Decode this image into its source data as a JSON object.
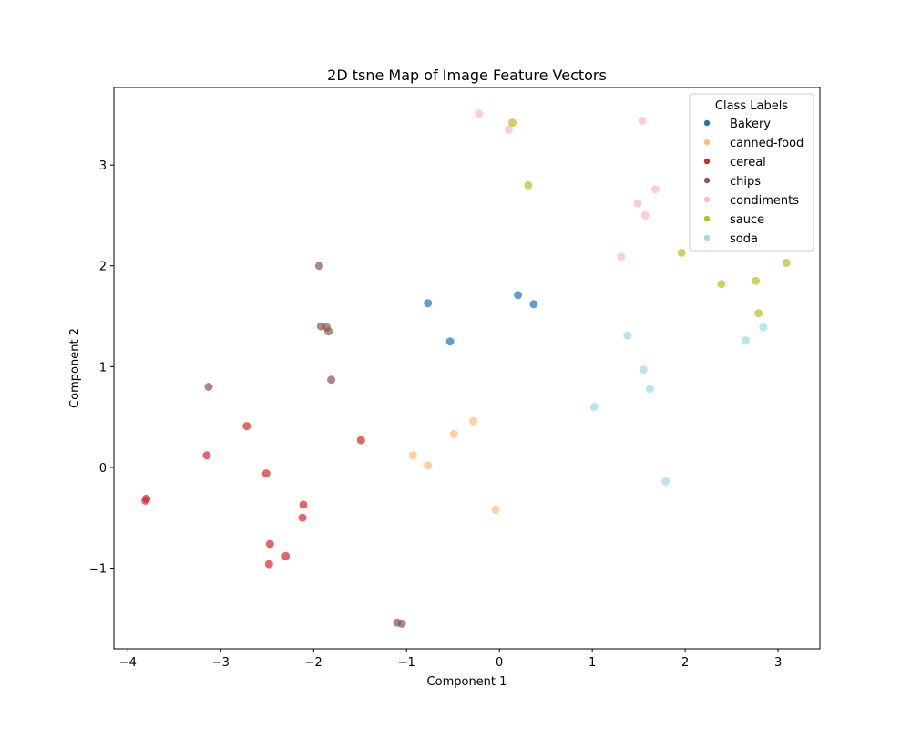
{
  "chart_data": {
    "type": "scatter",
    "title": "2D tsne Map of Image Feature Vectors",
    "xlabel": "Component 1",
    "ylabel": "Component 2",
    "xlim": [
      -4.15,
      3.45
    ],
    "ylim": [
      -1.8,
      3.77
    ],
    "xticks": [
      -4,
      -3,
      -2,
      -1,
      0,
      1,
      2,
      3
    ],
    "yticks": [
      -1,
      0,
      1,
      2,
      3
    ],
    "xtick_labels": [
      "−4",
      "−3",
      "−2",
      "−1",
      "0",
      "1",
      "2",
      "3"
    ],
    "ytick_labels": [
      "−1",
      "0",
      "1",
      "2",
      "3"
    ],
    "grid": false,
    "legend": {
      "title": "Class Labels",
      "position": "top-right"
    },
    "series": [
      {
        "name": "Bakery",
        "color": "#1f77b4",
        "points": [
          [
            -0.77,
            1.63
          ],
          [
            0.2,
            1.71
          ],
          [
            0.37,
            1.62
          ],
          [
            -0.53,
            1.25
          ]
        ]
      },
      {
        "name": "canned-food",
        "color": "#ffbb78",
        "points": [
          [
            -0.28,
            0.46
          ],
          [
            -0.49,
            0.33
          ],
          [
            -0.93,
            0.12
          ],
          [
            -0.77,
            0.02
          ],
          [
            -0.04,
            -0.42
          ]
        ]
      },
      {
        "name": "cereal",
        "color": "#d62728",
        "points": [
          [
            -2.72,
            0.41
          ],
          [
            -3.15,
            0.12
          ],
          [
            -1.49,
            0.27
          ],
          [
            -2.51,
            -0.06
          ],
          [
            -3.8,
            -0.31
          ],
          [
            -3.81,
            -0.33
          ],
          [
            -2.11,
            -0.37
          ],
          [
            -2.12,
            -0.5
          ],
          [
            -2.47,
            -0.76
          ],
          [
            -2.3,
            -0.88
          ],
          [
            -2.48,
            -0.96
          ]
        ]
      },
      {
        "name": "chips",
        "color": "#8c564b",
        "points": [
          [
            -1.94,
            2.0
          ],
          [
            -1.92,
            1.4
          ],
          [
            -1.86,
            1.39
          ],
          [
            -1.84,
            1.35
          ],
          [
            -1.81,
            0.87
          ],
          [
            -3.13,
            0.8
          ],
          [
            -1.1,
            -1.54
          ],
          [
            -1.05,
            -1.55
          ]
        ]
      },
      {
        "name": "condiments",
        "color": "#f7b6d2",
        "points": [
          [
            -0.22,
            3.51
          ],
          [
            0.1,
            3.35
          ],
          [
            1.54,
            3.44
          ],
          [
            1.68,
            2.76
          ],
          [
            1.49,
            2.62
          ],
          [
            1.57,
            2.5
          ],
          [
            1.31,
            2.09
          ]
        ]
      },
      {
        "name": "sauce",
        "color": "#bcbd22",
        "points": [
          [
            0.14,
            3.42
          ],
          [
            0.31,
            2.8
          ],
          [
            1.96,
            2.13
          ],
          [
            3.09,
            2.03
          ],
          [
            2.39,
            1.82
          ],
          [
            2.76,
            1.85
          ],
          [
            2.79,
            1.53
          ]
        ]
      },
      {
        "name": "soda",
        "color": "#9edae5",
        "points": [
          [
            1.38,
            1.31
          ],
          [
            2.84,
            1.39
          ],
          [
            2.65,
            1.26
          ],
          [
            1.55,
            0.97
          ],
          [
            1.62,
            0.78
          ],
          [
            1.02,
            0.6
          ],
          [
            1.79,
            -0.14
          ]
        ]
      }
    ]
  }
}
